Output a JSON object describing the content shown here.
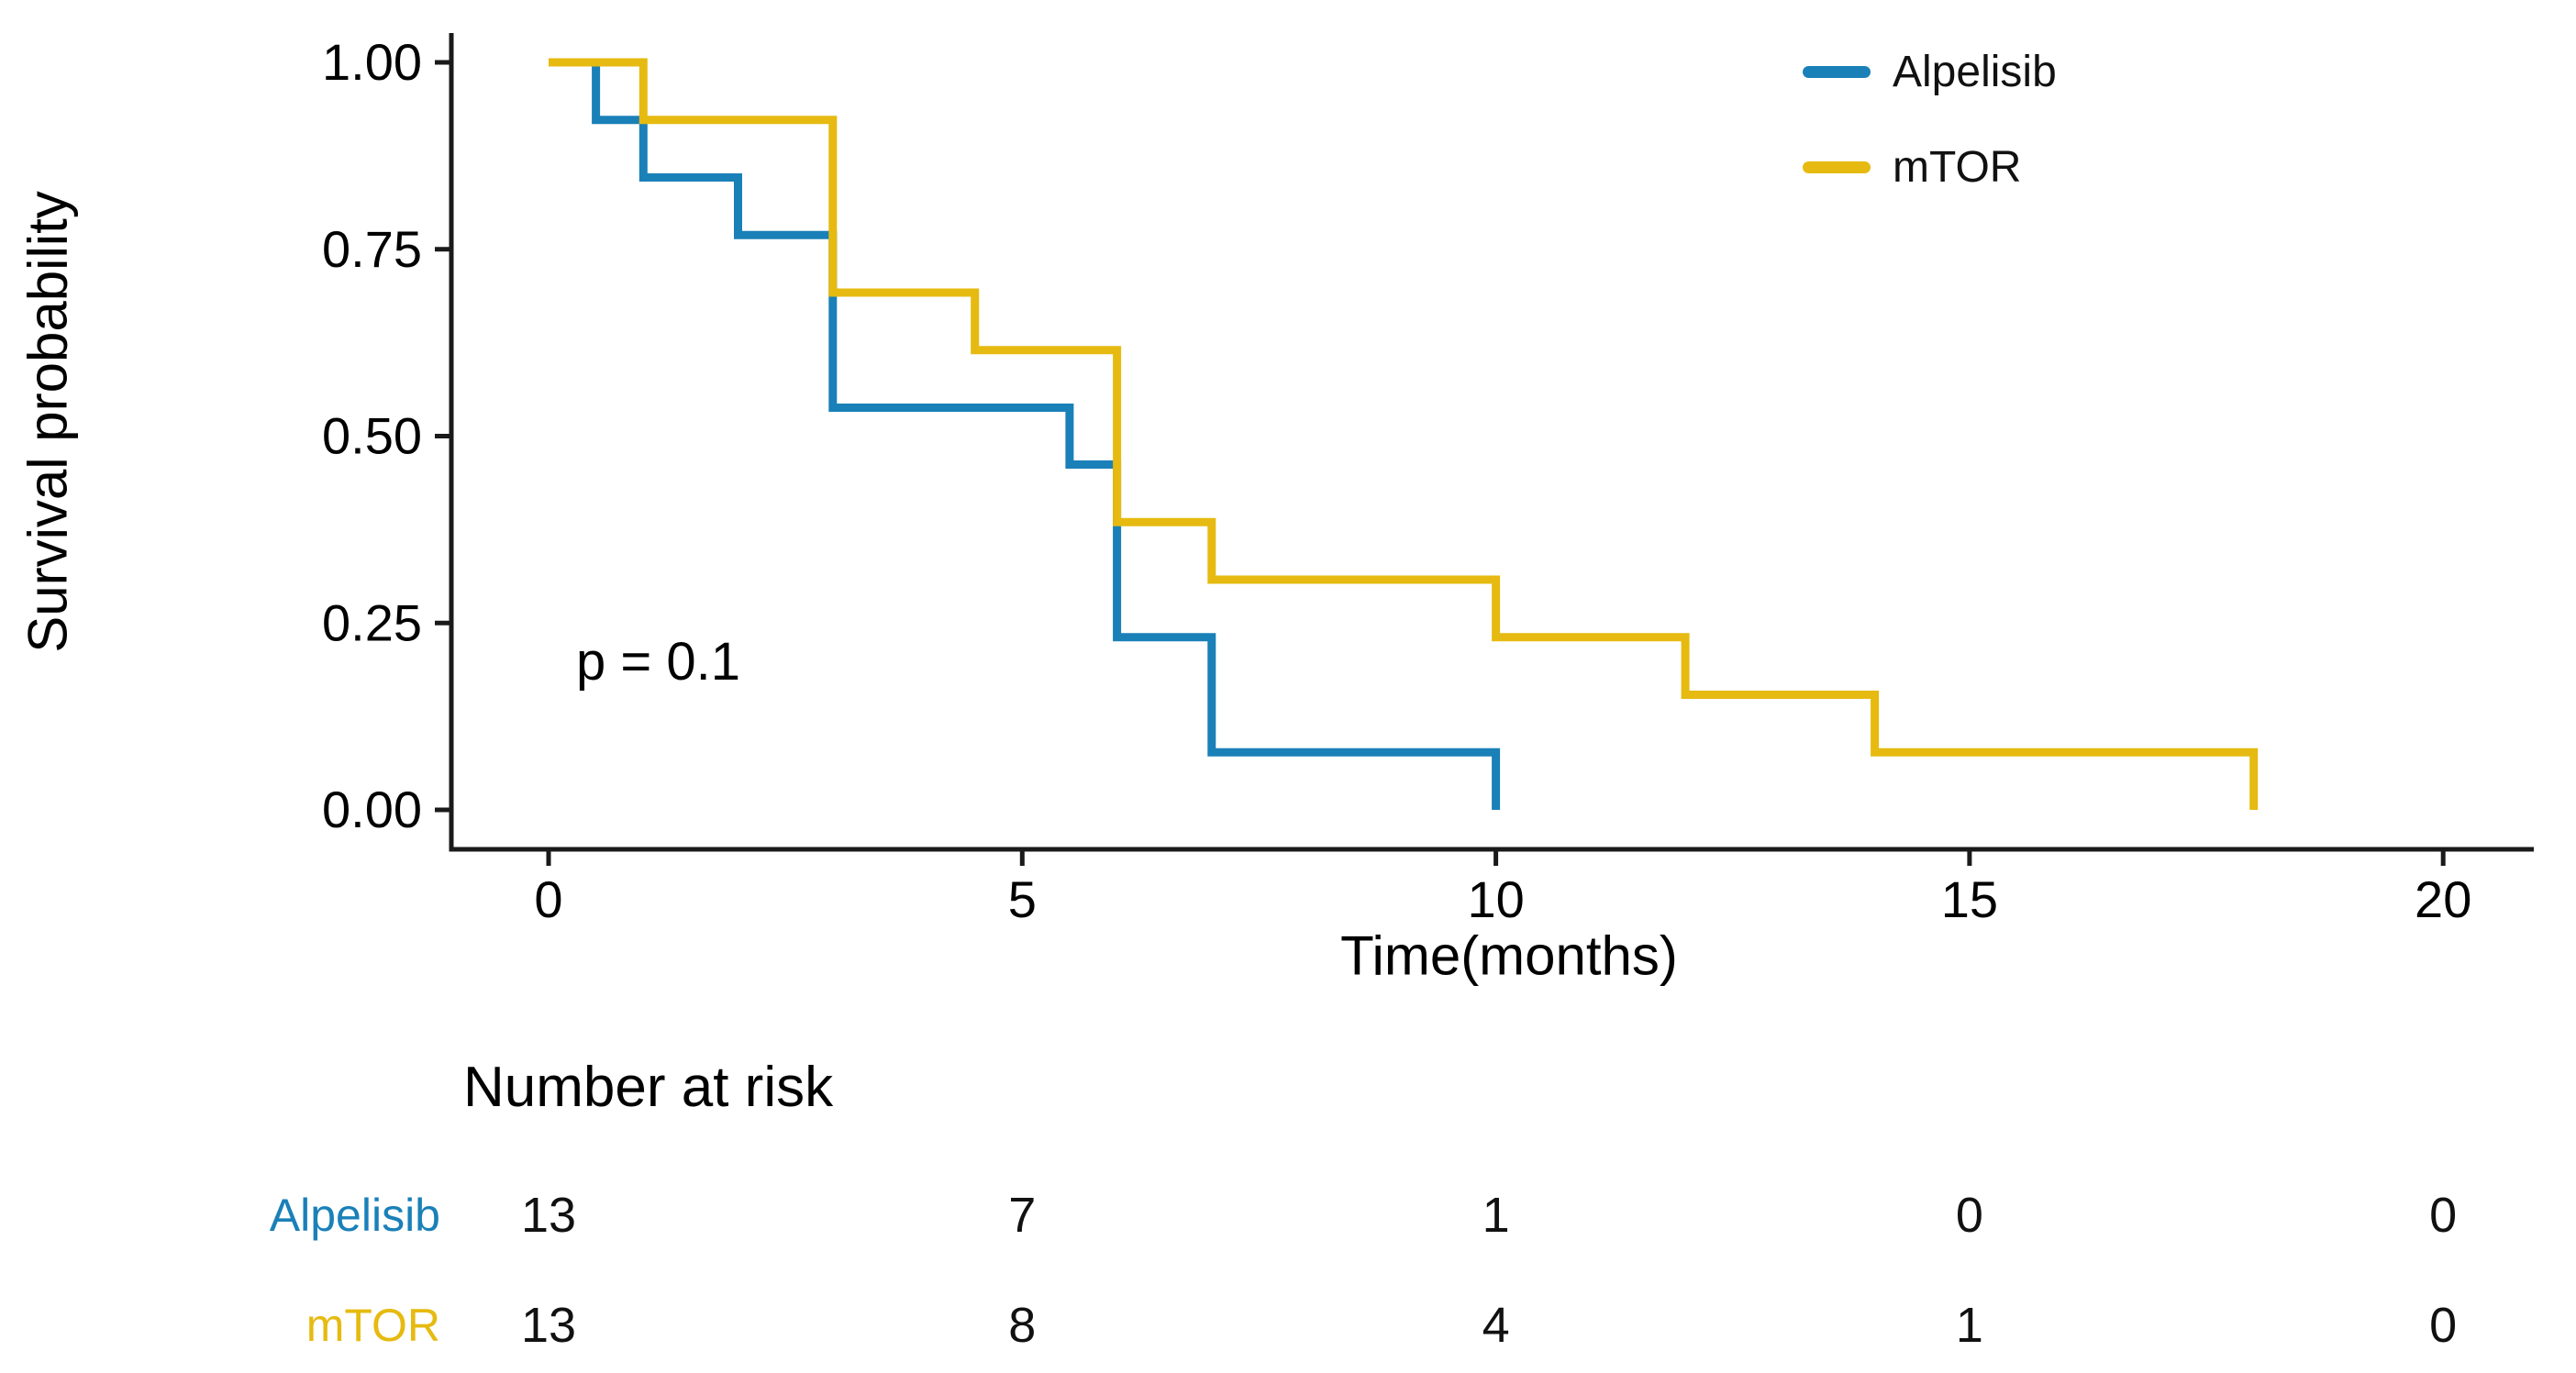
{
  "chart_data": {
    "type": "line",
    "subtype": "kaplan-meier-step",
    "title": "",
    "xlabel": "Time(months)",
    "ylabel": "Survival probability",
    "annotation": "p = 0.1",
    "xlim": [
      0,
      20
    ],
    "ylim": [
      0,
      1
    ],
    "x_ticks": [
      "0",
      "5",
      "10",
      "15",
      "20"
    ],
    "x_tick_values": [
      0,
      5,
      10,
      15,
      20
    ],
    "y_ticks": [
      "0.00",
      "0.25",
      "0.50",
      "0.75",
      "1.00"
    ],
    "y_tick_values": [
      0,
      0.25,
      0.5,
      0.75,
      1.0
    ],
    "grid": "off",
    "legend_position": "top-right",
    "axis_color": "#1a1a1a",
    "series": [
      {
        "name": "Alpelisib",
        "color": "#1A80B8",
        "start": [
          0,
          1.0
        ],
        "steps": [
          [
            0.5,
            0.923
          ],
          [
            1,
            0.846
          ],
          [
            2,
            0.769
          ],
          [
            3,
            0.538
          ],
          [
            5.5,
            0.462
          ],
          [
            6,
            0.231
          ],
          [
            7,
            0.077
          ],
          [
            10,
            0.0
          ]
        ]
      },
      {
        "name": "mTOR",
        "color": "#E6BA10",
        "start": [
          0,
          1.0
        ],
        "steps": [
          [
            1,
            0.923
          ],
          [
            3,
            0.692
          ],
          [
            4.5,
            0.615
          ],
          [
            6,
            0.385
          ],
          [
            7,
            0.308
          ],
          [
            10,
            0.231
          ],
          [
            12,
            0.154
          ],
          [
            14,
            0.077
          ],
          [
            18,
            0.0
          ]
        ]
      }
    ]
  },
  "risk_table": {
    "title": "Number at risk",
    "time_points": [
      0,
      5,
      10,
      15,
      20
    ],
    "rows": [
      {
        "name": "Alpelisib",
        "color": "#1A80B8",
        "counts": [
          "13",
          "7",
          "1",
          "0",
          "0"
        ]
      },
      {
        "name": "mTOR",
        "color": "#E6BA10",
        "counts": [
          "13",
          "8",
          "4",
          "1",
          "0"
        ]
      }
    ]
  }
}
